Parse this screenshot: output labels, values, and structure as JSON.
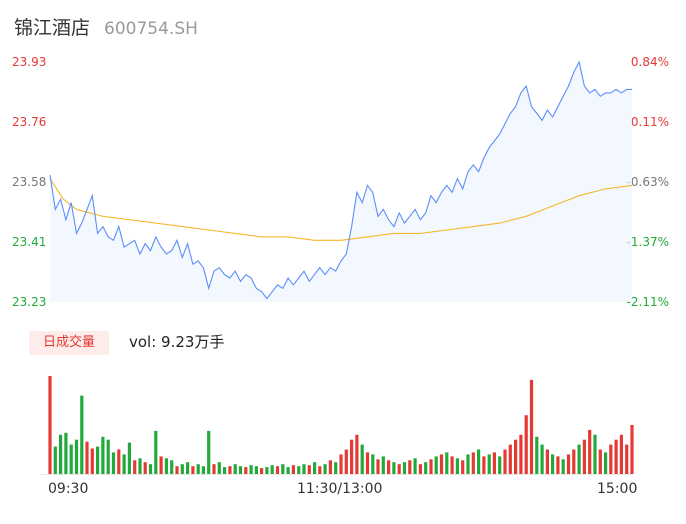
{
  "header": {
    "name": "锦江酒店",
    "code": "600754.SH"
  },
  "colors": {
    "price_line": "#5b8ff9",
    "avg_line": "#f5b82e",
    "up": "#e53935",
    "down": "#22a93b"
  },
  "volume": {
    "tab_label": "日成交量",
    "summary": "vol: 9.23万手"
  },
  "chart_data": {
    "type": "line",
    "y_ticks_price": [
      "23.93",
      "23.76",
      "23.58",
      "23.41",
      "23.23"
    ],
    "y_ticks_change": [
      "0.84%",
      "0.11%",
      "-0.63%",
      "-1.37%",
      "-2.11%"
    ],
    "x_ticks": [
      "09:30",
      "11:30/13:00",
      "15:00"
    ],
    "ylim": [
      23.23,
      23.93
    ],
    "price_series": [
      [
        0,
        23.6
      ],
      [
        2,
        23.5
      ],
      [
        4,
        23.53
      ],
      [
        6,
        23.47
      ],
      [
        8,
        23.52
      ],
      [
        10,
        23.43
      ],
      [
        12,
        23.46
      ],
      [
        14,
        23.5
      ],
      [
        16,
        23.54
      ],
      [
        18,
        23.43
      ],
      [
        20,
        23.45
      ],
      [
        22,
        23.42
      ],
      [
        24,
        23.41
      ],
      [
        26,
        23.45
      ],
      [
        28,
        23.39
      ],
      [
        30,
        23.4
      ],
      [
        32,
        23.41
      ],
      [
        34,
        23.37
      ],
      [
        36,
        23.4
      ],
      [
        38,
        23.38
      ],
      [
        40,
        23.42
      ],
      [
        42,
        23.39
      ],
      [
        44,
        23.37
      ],
      [
        46,
        23.38
      ],
      [
        48,
        23.41
      ],
      [
        50,
        23.36
      ],
      [
        52,
        23.4
      ],
      [
        54,
        23.34
      ],
      [
        56,
        23.35
      ],
      [
        58,
        23.33
      ],
      [
        60,
        23.27
      ],
      [
        62,
        23.32
      ],
      [
        64,
        23.33
      ],
      [
        66,
        23.31
      ],
      [
        68,
        23.3
      ],
      [
        70,
        23.32
      ],
      [
        72,
        23.29
      ],
      [
        74,
        23.31
      ],
      [
        76,
        23.3
      ],
      [
        78,
        23.27
      ],
      [
        80,
        23.26
      ],
      [
        82,
        23.24
      ],
      [
        84,
        23.26
      ],
      [
        86,
        23.28
      ],
      [
        88,
        23.27
      ],
      [
        90,
        23.3
      ],
      [
        92,
        23.28
      ],
      [
        94,
        23.3
      ],
      [
        96,
        23.32
      ],
      [
        98,
        23.29
      ],
      [
        100,
        23.31
      ],
      [
        102,
        23.33
      ],
      [
        104,
        23.31
      ],
      [
        106,
        23.33
      ],
      [
        108,
        23.32
      ],
      [
        110,
        23.35
      ],
      [
        112,
        23.37
      ],
      [
        114,
        23.45
      ],
      [
        116,
        23.55
      ],
      [
        118,
        23.52
      ],
      [
        120,
        23.57
      ],
      [
        122,
        23.55
      ],
      [
        124,
        23.48
      ],
      [
        126,
        23.5
      ],
      [
        128,
        23.47
      ],
      [
        130,
        23.45
      ],
      [
        132,
        23.49
      ],
      [
        134,
        23.46
      ],
      [
        136,
        23.48
      ],
      [
        138,
        23.5
      ],
      [
        140,
        23.47
      ],
      [
        142,
        23.49
      ],
      [
        144,
        23.54
      ],
      [
        146,
        23.52
      ],
      [
        148,
        23.55
      ],
      [
        150,
        23.57
      ],
      [
        152,
        23.55
      ],
      [
        154,
        23.59
      ],
      [
        156,
        23.56
      ],
      [
        158,
        23.61
      ],
      [
        160,
        23.63
      ],
      [
        162,
        23.61
      ],
      [
        164,
        23.65
      ],
      [
        166,
        23.68
      ],
      [
        168,
        23.7
      ],
      [
        170,
        23.72
      ],
      [
        172,
        23.75
      ],
      [
        174,
        23.78
      ],
      [
        176,
        23.8
      ],
      [
        178,
        23.84
      ],
      [
        180,
        23.86
      ],
      [
        182,
        23.8
      ],
      [
        184,
        23.78
      ],
      [
        186,
        23.76
      ],
      [
        188,
        23.79
      ],
      [
        190,
        23.77
      ],
      [
        192,
        23.8
      ],
      [
        194,
        23.83
      ],
      [
        196,
        23.86
      ],
      [
        198,
        23.9
      ],
      [
        200,
        23.93
      ],
      [
        202,
        23.86
      ],
      [
        204,
        23.84
      ],
      [
        206,
        23.85
      ],
      [
        208,
        23.83
      ],
      [
        210,
        23.84
      ],
      [
        212,
        23.84
      ],
      [
        214,
        23.85
      ],
      [
        216,
        23.84
      ],
      [
        218,
        23.85
      ],
      [
        220,
        23.85
      ]
    ],
    "avg_series": [
      [
        0,
        23.59
      ],
      [
        5,
        23.53
      ],
      [
        10,
        23.5
      ],
      [
        20,
        23.48
      ],
      [
        30,
        23.47
      ],
      [
        40,
        23.46
      ],
      [
        50,
        23.45
      ],
      [
        60,
        23.44
      ],
      [
        70,
        23.43
      ],
      [
        80,
        23.42
      ],
      [
        90,
        23.42
      ],
      [
        100,
        23.41
      ],
      [
        110,
        23.41
      ],
      [
        120,
        23.42
      ],
      [
        130,
        23.43
      ],
      [
        140,
        23.43
      ],
      [
        150,
        23.44
      ],
      [
        160,
        23.45
      ],
      [
        170,
        23.46
      ],
      [
        180,
        23.48
      ],
      [
        190,
        23.51
      ],
      [
        200,
        23.54
      ],
      [
        210,
        23.56
      ],
      [
        220,
        23.57
      ]
    ],
    "volume_bars": [
      [
        0,
        1,
        100
      ],
      [
        2,
        0,
        28
      ],
      [
        4,
        0,
        40
      ],
      [
        6,
        0,
        42
      ],
      [
        8,
        0,
        30
      ],
      [
        10,
        0,
        35
      ],
      [
        12,
        0,
        80
      ],
      [
        14,
        1,
        33
      ],
      [
        16,
        1,
        26
      ],
      [
        18,
        0,
        28
      ],
      [
        20,
        0,
        38
      ],
      [
        22,
        0,
        35
      ],
      [
        24,
        0,
        22
      ],
      [
        26,
        1,
        25
      ],
      [
        28,
        0,
        20
      ],
      [
        30,
        0,
        32
      ],
      [
        32,
        1,
        14
      ],
      [
        34,
        0,
        16
      ],
      [
        36,
        1,
        12
      ],
      [
        38,
        0,
        10
      ],
      [
        40,
        0,
        44
      ],
      [
        42,
        1,
        18
      ],
      [
        44,
        0,
        16
      ],
      [
        46,
        0,
        14
      ],
      [
        48,
        1,
        8
      ],
      [
        50,
        0,
        10
      ],
      [
        52,
        0,
        12
      ],
      [
        54,
        1,
        8
      ],
      [
        56,
        0,
        10
      ],
      [
        58,
        0,
        8
      ],
      [
        60,
        0,
        44
      ],
      [
        62,
        1,
        10
      ],
      [
        64,
        0,
        12
      ],
      [
        66,
        0,
        7
      ],
      [
        68,
        1,
        8
      ],
      [
        70,
        0,
        10
      ],
      [
        72,
        0,
        8
      ],
      [
        74,
        1,
        7
      ],
      [
        76,
        0,
        9
      ],
      [
        78,
        0,
        8
      ],
      [
        80,
        1,
        6
      ],
      [
        82,
        0,
        7
      ],
      [
        84,
        0,
        9
      ],
      [
        86,
        1,
        8
      ],
      [
        88,
        0,
        10
      ],
      [
        90,
        0,
        7
      ],
      [
        92,
        1,
        9
      ],
      [
        94,
        0,
        8
      ],
      [
        96,
        0,
        10
      ],
      [
        98,
        1,
        9
      ],
      [
        100,
        0,
        12
      ],
      [
        102,
        1,
        8
      ],
      [
        104,
        0,
        10
      ],
      [
        106,
        1,
        14
      ],
      [
        108,
        0,
        12
      ],
      [
        110,
        1,
        20
      ],
      [
        112,
        1,
        25
      ],
      [
        114,
        1,
        35
      ],
      [
        116,
        1,
        40
      ],
      [
        118,
        0,
        30
      ],
      [
        120,
        1,
        22
      ],
      [
        122,
        0,
        20
      ],
      [
        124,
        1,
        15
      ],
      [
        126,
        0,
        18
      ],
      [
        128,
        1,
        14
      ],
      [
        130,
        0,
        12
      ],
      [
        132,
        1,
        10
      ],
      [
        134,
        0,
        12
      ],
      [
        136,
        1,
        14
      ],
      [
        138,
        0,
        16
      ],
      [
        140,
        1,
        10
      ],
      [
        142,
        0,
        12
      ],
      [
        144,
        1,
        15
      ],
      [
        146,
        0,
        18
      ],
      [
        148,
        1,
        20
      ],
      [
        150,
        0,
        22
      ],
      [
        152,
        1,
        18
      ],
      [
        154,
        0,
        16
      ],
      [
        156,
        1,
        14
      ],
      [
        158,
        0,
        20
      ],
      [
        160,
        1,
        22
      ],
      [
        162,
        0,
        25
      ],
      [
        164,
        1,
        18
      ],
      [
        166,
        0,
        20
      ],
      [
        168,
        1,
        22
      ],
      [
        170,
        0,
        18
      ],
      [
        172,
        1,
        25
      ],
      [
        174,
        1,
        30
      ],
      [
        176,
        1,
        35
      ],
      [
        178,
        1,
        40
      ],
      [
        180,
        1,
        60
      ],
      [
        182,
        1,
        96
      ],
      [
        184,
        0,
        38
      ],
      [
        186,
        0,
        30
      ],
      [
        188,
        1,
        25
      ],
      [
        190,
        0,
        20
      ],
      [
        192,
        1,
        18
      ],
      [
        194,
        0,
        15
      ],
      [
        196,
        1,
        20
      ],
      [
        198,
        1,
        25
      ],
      [
        200,
        0,
        30
      ],
      [
        202,
        1,
        35
      ],
      [
        204,
        1,
        45
      ],
      [
        206,
        0,
        40
      ],
      [
        208,
        1,
        25
      ],
      [
        210,
        0,
        22
      ],
      [
        212,
        1,
        30
      ],
      [
        214,
        1,
        35
      ],
      [
        216,
        1,
        40
      ],
      [
        218,
        1,
        30
      ],
      [
        220,
        1,
        50
      ]
    ]
  }
}
